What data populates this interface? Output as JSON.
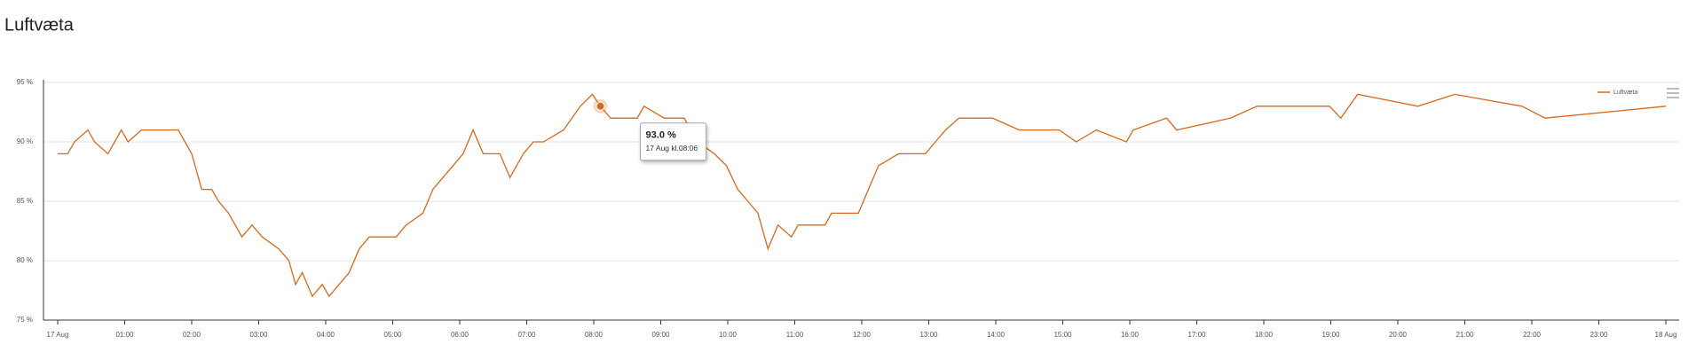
{
  "chart_data": {
    "type": "line",
    "title": "Luftvæta",
    "x": [
      0.0,
      0.15,
      0.25,
      0.45,
      0.55,
      0.75,
      0.85,
      0.95,
      1.05,
      1.25,
      1.8,
      1.9,
      2.0,
      2.05,
      2.15,
      2.3,
      2.4,
      2.55,
      2.65,
      2.75,
      2.9,
      3.05,
      3.3,
      3.45,
      3.55,
      3.65,
      3.8,
      3.95,
      4.05,
      4.2,
      4.35,
      4.5,
      4.65,
      5.05,
      5.2,
      5.45,
      5.6,
      5.75,
      5.9,
      6.05,
      6.2,
      6.35,
      6.6,
      6.75,
      6.95,
      7.1,
      7.25,
      7.55,
      7.8,
      7.98,
      8.1,
      8.25,
      8.65,
      8.75,
      9.05,
      9.35,
      9.55,
      9.8,
      9.98,
      10.15,
      10.3,
      10.45,
      10.6,
      10.75,
      10.95,
      11.05,
      11.45,
      11.55,
      11.95,
      12.1,
      12.25,
      12.55,
      12.95,
      13.1,
      13.25,
      13.45,
      13.95,
      14.35,
      14.95,
      15.2,
      15.5,
      15.95,
      16.05,
      16.55,
      16.7,
      17.5,
      17.9,
      18.98,
      19.15,
      19.4,
      20.3,
      20.85,
      21.85,
      22.2,
      24.0
    ],
    "series": [
      {
        "name": "Luftvæta",
        "color": "#d9681c",
        "values": [
          89,
          89,
          90,
          91,
          90,
          89,
          90,
          91,
          90,
          91,
          91,
          90,
          89,
          88,
          86,
          86,
          85,
          84,
          83,
          82,
          83,
          82,
          81,
          80,
          78,
          79,
          77,
          78,
          77,
          78,
          79,
          81,
          82,
          82,
          83,
          84,
          86,
          87,
          88,
          89,
          91,
          89,
          89,
          87,
          89,
          90,
          90,
          91,
          93,
          94,
          93,
          92,
          92,
          93,
          92,
          92,
          90,
          89,
          88,
          86,
          85,
          84,
          81,
          83,
          82,
          83,
          83,
          84,
          84,
          86,
          88,
          89,
          89,
          90,
          91,
          92,
          92,
          91,
          91,
          90,
          91,
          90,
          91,
          92,
          91,
          92,
          93,
          93,
          92,
          94,
          93,
          94,
          93,
          92,
          93
        ]
      }
    ],
    "xlim": [
      0,
      24
    ],
    "xticks": [
      {
        "value": 0,
        "label": "17 Aug"
      },
      {
        "value": 1,
        "label": "01:00"
      },
      {
        "value": 2,
        "label": "02:00"
      },
      {
        "value": 3,
        "label": "03:00"
      },
      {
        "value": 4,
        "label": "04:00"
      },
      {
        "value": 5,
        "label": "05:00"
      },
      {
        "value": 6,
        "label": "06:00"
      },
      {
        "value": 7,
        "label": "07:00"
      },
      {
        "value": 8,
        "label": "08:00"
      },
      {
        "value": 9,
        "label": "09:00"
      },
      {
        "value": 10,
        "label": "10:00"
      },
      {
        "value": 11,
        "label": "11:00"
      },
      {
        "value": 12,
        "label": "12:00"
      },
      {
        "value": 13,
        "label": "13:00"
      },
      {
        "value": 14,
        "label": "14:00"
      },
      {
        "value": 15,
        "label": "15:00"
      },
      {
        "value": 16,
        "label": "16:00"
      },
      {
        "value": 17,
        "label": "17:00"
      },
      {
        "value": 18,
        "label": "18:00"
      },
      {
        "value": 19,
        "label": "19:00"
      },
      {
        "value": 20,
        "label": "20:00"
      },
      {
        "value": 21,
        "label": "21:00"
      },
      {
        "value": 22,
        "label": "22:00"
      },
      {
        "value": 23,
        "label": "23:00"
      },
      {
        "value": 24,
        "label": "18 Aug"
      }
    ],
    "ylim": [
      75,
      95
    ],
    "yticks": [
      {
        "value": 75,
        "label": "75 %"
      },
      {
        "value": 80,
        "label": "80 %"
      },
      {
        "value": 85,
        "label": "85 %"
      },
      {
        "value": 90,
        "label": "90 %"
      },
      {
        "value": 95,
        "label": "95 %"
      }
    ],
    "grid": true,
    "legend": "top-right",
    "tooltip": {
      "x": 8.1,
      "y": 93,
      "value_label": "93.0 %",
      "time": "17 Aug kl.08:06"
    }
  }
}
